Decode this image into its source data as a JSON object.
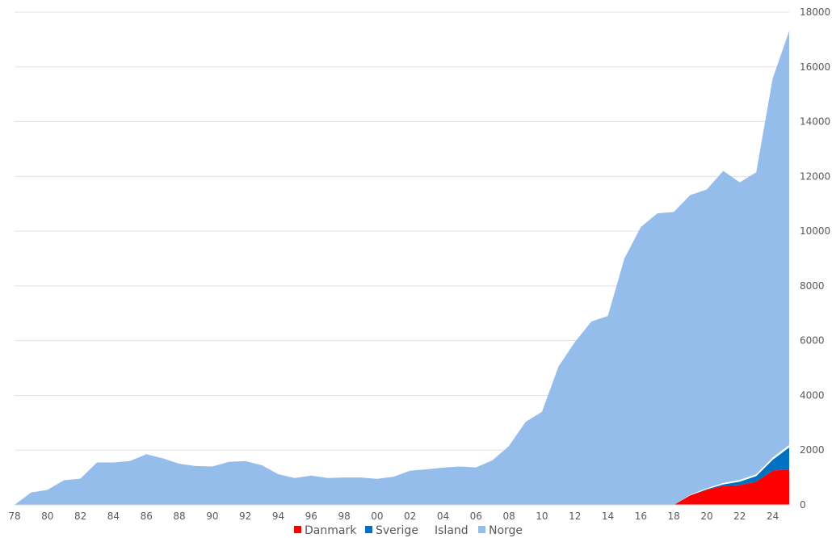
{
  "chart_data": {
    "type": "area",
    "stacked": true,
    "x": [
      "78",
      "79",
      "80",
      "81",
      "82",
      "83",
      "84",
      "85",
      "86",
      "87",
      "88",
      "89",
      "90",
      "91",
      "92",
      "93",
      "94",
      "95",
      "96",
      "97",
      "98",
      "99",
      "00",
      "01",
      "02",
      "03",
      "04",
      "05",
      "06",
      "07",
      "08",
      "09",
      "10",
      "11",
      "12",
      "13",
      "14",
      "15",
      "16",
      "17",
      "18",
      "19",
      "20",
      "21",
      "22",
      "23",
      "24",
      "25"
    ],
    "x_tick_labels": [
      "78",
      "80",
      "82",
      "84",
      "86",
      "88",
      "90",
      "92",
      "94",
      "96",
      "98",
      "00",
      "02",
      "04",
      "06",
      "08",
      "10",
      "12",
      "14",
      "16",
      "18",
      "20",
      "22",
      "24"
    ],
    "y_ticks": [
      0,
      2000,
      4000,
      6000,
      8000,
      10000,
      12000,
      14000,
      16000,
      18000
    ],
    "ylim": [
      0,
      18000
    ],
    "y_axis_side": "right",
    "grid": true,
    "legend_position": "bottom",
    "series": [
      {
        "name": "Danmark",
        "color": "#ff0000",
        "values": [
          0,
          0,
          0,
          0,
          0,
          0,
          0,
          0,
          0,
          0,
          0,
          0,
          0,
          0,
          0,
          0,
          0,
          0,
          0,
          0,
          0,
          0,
          0,
          0,
          0,
          0,
          0,
          0,
          0,
          0,
          0,
          0,
          0,
          0,
          0,
          0,
          0,
          0,
          0,
          0,
          0,
          350,
          550,
          700,
          720,
          850,
          1250,
          1300
        ]
      },
      {
        "name": "Sverige",
        "color": "#0070c0",
        "values": [
          0,
          0,
          0,
          0,
          0,
          0,
          0,
          0,
          0,
          0,
          0,
          0,
          0,
          0,
          0,
          0,
          0,
          0,
          0,
          0,
          0,
          0,
          0,
          0,
          0,
          0,
          0,
          0,
          0,
          0,
          0,
          0,
          0,
          0,
          0,
          0,
          0,
          0,
          0,
          0,
          0,
          0,
          20,
          50,
          130,
          200,
          400,
          800
        ]
      },
      {
        "name": "Island",
        "color": "#ffffff",
        "values": [
          0,
          0,
          0,
          0,
          0,
          0,
          0,
          0,
          0,
          0,
          0,
          0,
          0,
          0,
          0,
          0,
          0,
          0,
          0,
          0,
          0,
          0,
          0,
          0,
          0,
          0,
          0,
          0,
          0,
          0,
          0,
          0,
          0,
          0,
          0,
          0,
          0,
          0,
          0,
          0,
          0,
          20,
          40,
          50,
          60,
          70,
          80,
          90
        ]
      },
      {
        "name": "Norge",
        "color": "#95bdeb",
        "values": [
          0,
          450,
          550,
          900,
          960,
          1550,
          1550,
          1600,
          1850,
          1700,
          1500,
          1420,
          1400,
          1570,
          1600,
          1450,
          1120,
          980,
          1070,
          980,
          1000,
          1000,
          950,
          1030,
          1250,
          1300,
          1360,
          1400,
          1370,
          1630,
          2150,
          3030,
          3400,
          5050,
          5950,
          6700,
          6900,
          9000,
          10150,
          10650,
          10700,
          10950,
          10910,
          11400,
          10870,
          11030,
          13850,
          15120
        ]
      }
    ]
  }
}
